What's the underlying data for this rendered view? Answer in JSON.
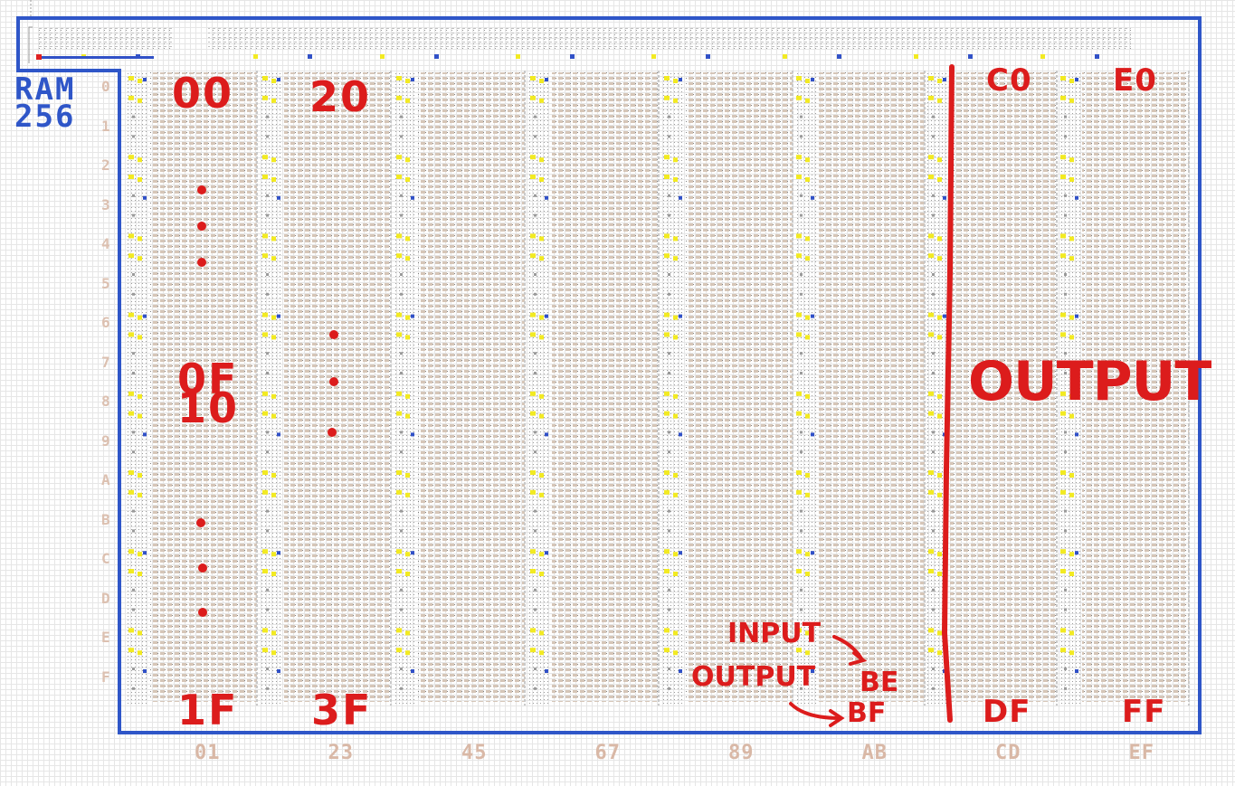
{
  "logo": {
    "line1": "RAM",
    "line2": "256"
  },
  "labels": {
    "col0_top": "00",
    "col0_mid_a": "0F",
    "col0_mid_b": "10",
    "col0_bottom": "1F",
    "col1_top": "20",
    "col1_bottom": "3F",
    "col6_top": "C0",
    "col6_bottom": "DF",
    "col7_top": "E0",
    "col7_bottom": "FF",
    "output_region": "OUTPUT",
    "input_note": "INPUT",
    "output_note": "OUTPUT",
    "input_addr": "BE",
    "output_addr": "BF"
  },
  "bottom_hex": [
    "01",
    "23",
    "45",
    "67",
    "89",
    "AB",
    "CD",
    "EF"
  ],
  "row_hex": [
    "0",
    "1",
    "2",
    "3",
    "4",
    "5",
    "6",
    "7",
    "8",
    "9",
    "A",
    "B",
    "C",
    "D",
    "E",
    "F"
  ],
  "colors": {
    "border": "#2f56c8",
    "annotation": "#dc1c1c",
    "cell": "#d4c3b4",
    "pin_yellow": "#f2ea22",
    "pin_blue": "#3151c7",
    "wire": "#8a8a8a"
  }
}
